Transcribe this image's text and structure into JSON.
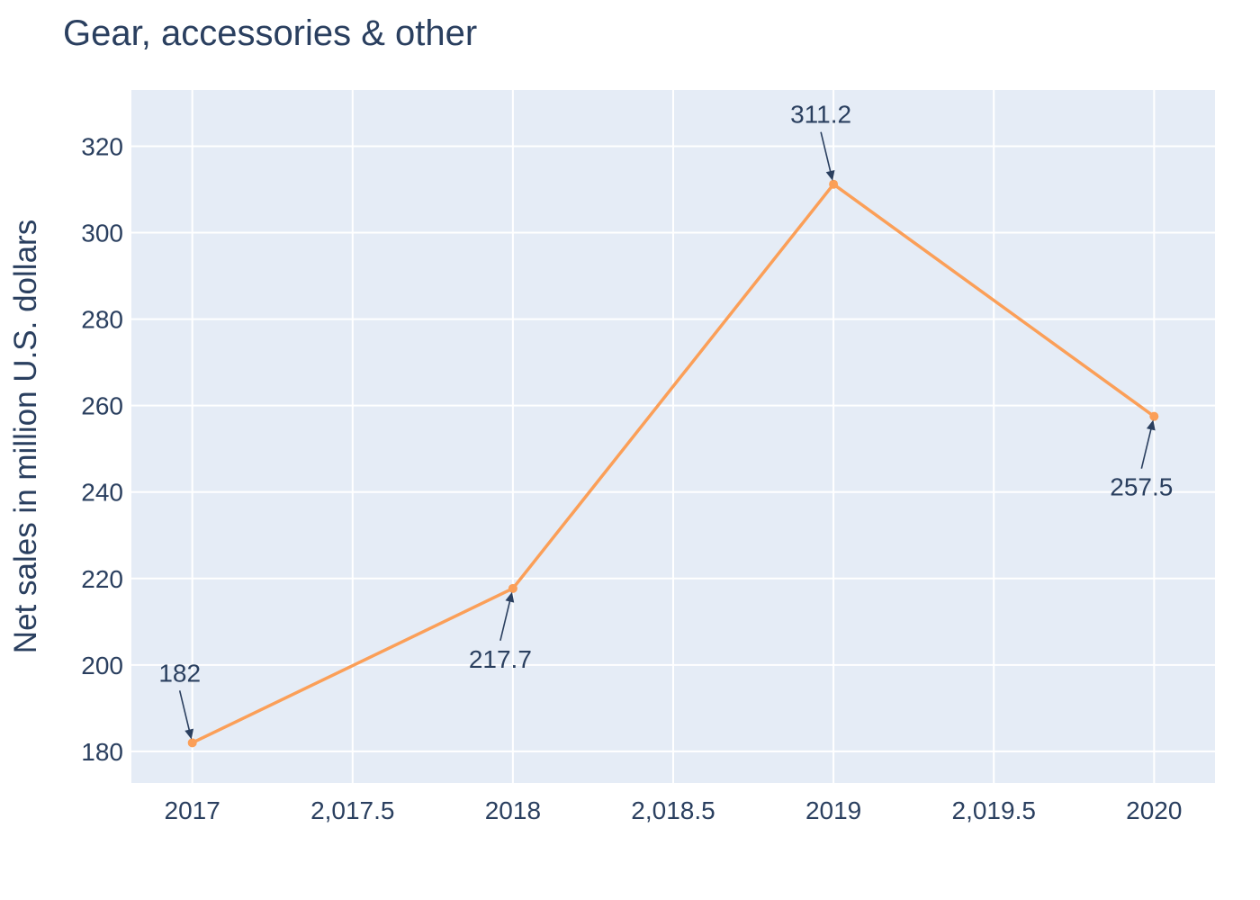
{
  "chart_data": {
    "type": "line",
    "title": "Gear, accessories & other",
    "xlabel": "",
    "ylabel": "Net sales in million U.S. dollars",
    "x": [
      2017,
      2018,
      2019,
      2020
    ],
    "series": [
      {
        "values": [
          182,
          217.7,
          311.2,
          257.5
        ],
        "color": "#fb9f58"
      }
    ],
    "annotations": [
      {
        "x": 2017,
        "y": 182,
        "text": "182",
        "position": "above"
      },
      {
        "x": 2018,
        "y": 217.7,
        "text": "217.7",
        "position": "below"
      },
      {
        "x": 2019,
        "y": 311.2,
        "text": "311.2",
        "position": "above"
      },
      {
        "x": 2020,
        "y": 257.5,
        "text": "257.5",
        "position": "below"
      }
    ],
    "xticks": [
      2017,
      2017.5,
      2018,
      2018.5,
      2019,
      2019.5,
      2020
    ],
    "xtick_labels": [
      "2017",
      "2,017.5",
      "2018",
      "2,018.5",
      "2019",
      "2,019.5",
      "2020"
    ],
    "yticks": [
      180,
      200,
      220,
      240,
      260,
      280,
      300,
      320
    ],
    "yticklabels": [
      "180",
      "200",
      "220",
      "240",
      "260",
      "280",
      "300",
      "320"
    ],
    "xlim": [
      2016.81,
      2020.19
    ],
    "ylim": [
      172.7,
      333.0
    ],
    "grid": true,
    "colors": {
      "plot_bg": "#e5ecf6",
      "text": "#2a3f5f",
      "line": "#fb9f58"
    }
  }
}
